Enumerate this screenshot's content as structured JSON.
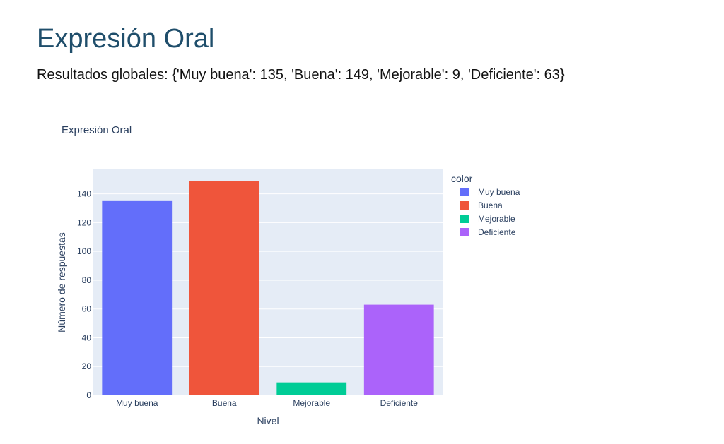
{
  "page": {
    "title": "Expresión Oral",
    "results_line": "Resultados globales: {'Muy buena': 135, 'Buena': 149, 'Mejorable': 9, 'Deficiente': 63}"
  },
  "chart_data": {
    "type": "bar",
    "title": "Expresión Oral",
    "xlabel": "Nivel",
    "ylabel": "Número de respuestas",
    "categories": [
      "Muy buena",
      "Buena",
      "Mejorable",
      "Deficiente"
    ],
    "values": [
      135,
      149,
      9,
      63
    ],
    "colors": [
      "#636efa",
      "#ef553b",
      "#00cc96",
      "#ab63fa"
    ],
    "ylim": [
      0,
      157
    ],
    "yticks": [
      0,
      20,
      40,
      60,
      80,
      100,
      120,
      140
    ],
    "grid": true,
    "plot_background": "#e5ecf6",
    "legend": {
      "title": "color",
      "placement": "right",
      "entries": [
        "Muy buena",
        "Buena",
        "Mejorable",
        "Deficiente"
      ]
    }
  }
}
